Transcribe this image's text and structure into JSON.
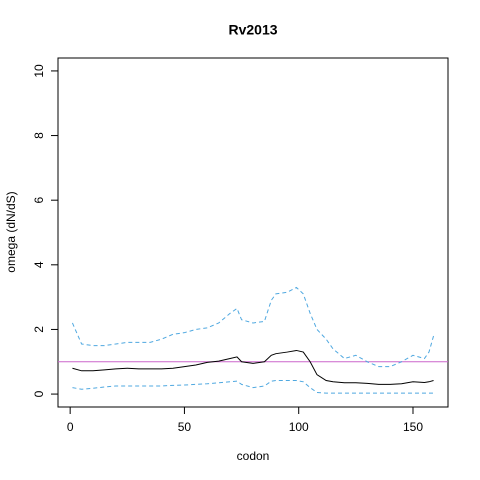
{
  "chart_data": {
    "type": "line",
    "title": "Rv2013",
    "x_label": "codon",
    "y_label": "omega (dN/dS)",
    "x": [
      1,
      5,
      10,
      15,
      20,
      25,
      30,
      35,
      40,
      45,
      50,
      55,
      60,
      65,
      70,
      73,
      75,
      80,
      85,
      88,
      90,
      95,
      99,
      102,
      105,
      108,
      112,
      115,
      120,
      125,
      130,
      135,
      140,
      145,
      150,
      155,
      157,
      159
    ],
    "series": [
      {
        "name": "upper",
        "color": "#4fa8e0",
        "line_style": "dashed",
        "values": [
          2.2,
          1.55,
          1.5,
          1.5,
          1.55,
          1.6,
          1.6,
          1.6,
          1.7,
          1.85,
          1.9,
          2.0,
          2.05,
          2.2,
          2.5,
          2.65,
          2.3,
          2.2,
          2.25,
          2.9,
          3.1,
          3.15,
          3.3,
          3.1,
          2.5,
          2.0,
          1.7,
          1.4,
          1.1,
          1.2,
          1.0,
          0.85,
          0.85,
          1.0,
          1.2,
          1.1,
          1.3,
          1.8
        ]
      },
      {
        "name": "omega",
        "color": "#000000",
        "line_style": "solid",
        "values": [
          0.8,
          0.72,
          0.72,
          0.75,
          0.78,
          0.8,
          0.78,
          0.78,
          0.78,
          0.8,
          0.85,
          0.9,
          0.98,
          1.02,
          1.1,
          1.15,
          1.0,
          0.95,
          1.0,
          1.2,
          1.25,
          1.3,
          1.35,
          1.3,
          1.0,
          0.6,
          0.42,
          0.38,
          0.35,
          0.35,
          0.33,
          0.3,
          0.3,
          0.32,
          0.38,
          0.36,
          0.38,
          0.42
        ]
      },
      {
        "name": "lower",
        "color": "#4fa8e0",
        "line_style": "dashed",
        "values": [
          0.2,
          0.15,
          0.18,
          0.22,
          0.25,
          0.25,
          0.25,
          0.25,
          0.25,
          0.27,
          0.28,
          0.3,
          0.32,
          0.35,
          0.38,
          0.4,
          0.3,
          0.2,
          0.25,
          0.4,
          0.42,
          0.42,
          0.42,
          0.38,
          0.2,
          0.05,
          0.03,
          0.03,
          0.03,
          0.03,
          0.03,
          0.03,
          0.03,
          0.03,
          0.03,
          0.03,
          0.03,
          0.03
        ]
      }
    ],
    "reference_line": {
      "value": 1,
      "color": "#cc66cc"
    },
    "xlim": [
      -5.32,
      165.32
    ],
    "ylim": [
      -0.4,
      10.4
    ],
    "xticks": [
      0,
      50,
      100,
      150
    ],
    "yticks": [
      0,
      2,
      4,
      6,
      8,
      10
    ]
  }
}
